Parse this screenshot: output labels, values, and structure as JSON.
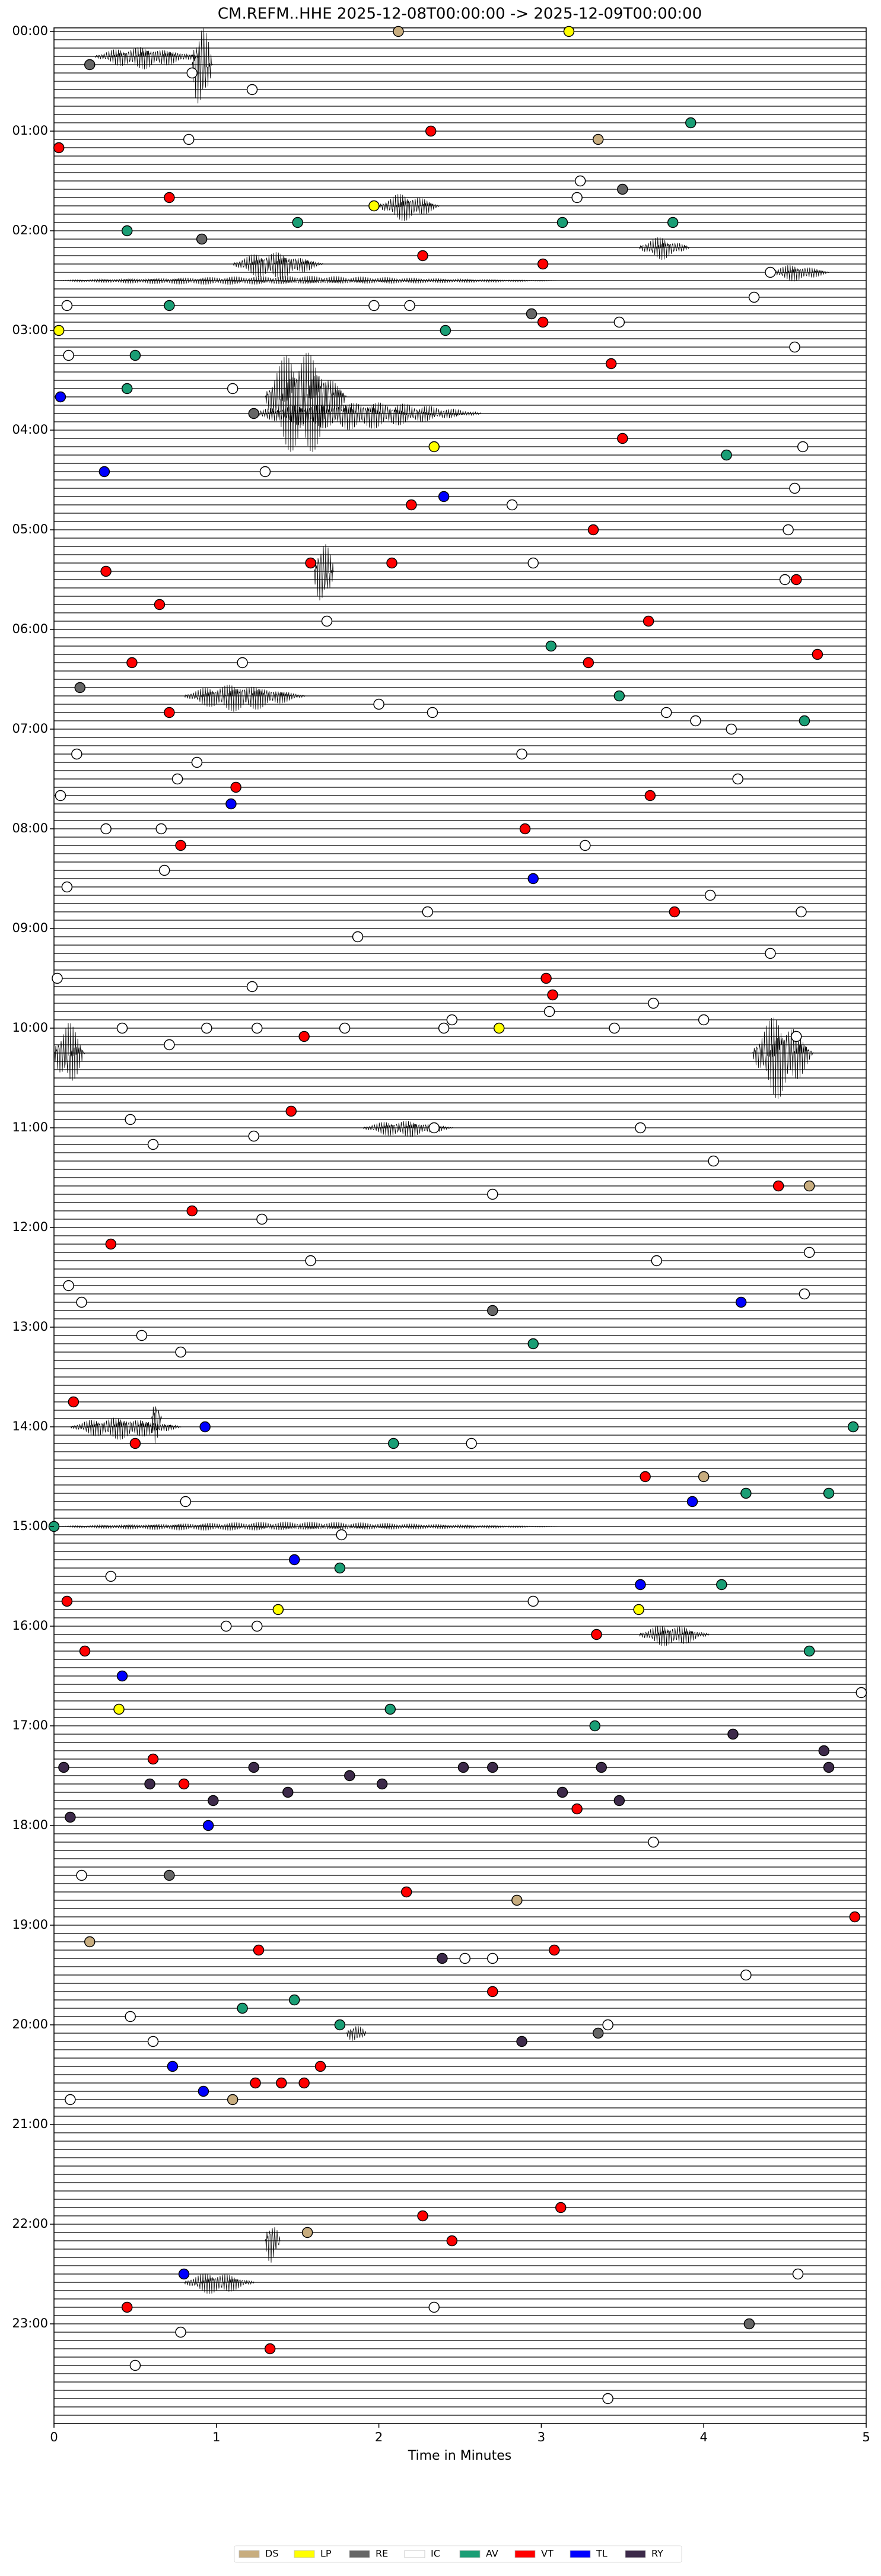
{
  "chart_data": {
    "type": "helicorder",
    "title": "CM.REFM..HHE  2025-12-08T00:00:00 -> 2025-12-09T00:00:00",
    "xlabel": "Time in Minutes",
    "xlim": [
      0,
      5
    ],
    "xticks": [
      0,
      1,
      2,
      3,
      4,
      5
    ],
    "ylim": [
      0,
      1435
    ],
    "row_interval": 5,
    "yticks": [
      {
        "value": 0,
        "label": "00:00"
      },
      {
        "value": 60,
        "label": "01:00"
      },
      {
        "value": 120,
        "label": "02:00"
      },
      {
        "value": 180,
        "label": "03:00"
      },
      {
        "value": 240,
        "label": "04:00"
      },
      {
        "value": 300,
        "label": "05:00"
      },
      {
        "value": 360,
        "label": "06:00"
      },
      {
        "value": 420,
        "label": "07:00"
      },
      {
        "value": 480,
        "label": "08:00"
      },
      {
        "value": 540,
        "label": "09:00"
      },
      {
        "value": 600,
        "label": "10:00"
      },
      {
        "value": 660,
        "label": "11:00"
      },
      {
        "value": 720,
        "label": "12:00"
      },
      {
        "value": 780,
        "label": "13:00"
      },
      {
        "value": 840,
        "label": "14:00"
      },
      {
        "value": 900,
        "label": "15:00"
      },
      {
        "value": 960,
        "label": "16:00"
      },
      {
        "value": 1020,
        "label": "17:00"
      },
      {
        "value": 1080,
        "label": "18:00"
      },
      {
        "value": 1140,
        "label": "19:00"
      },
      {
        "value": 1200,
        "label": "20:00"
      },
      {
        "value": 1260,
        "label": "21:00"
      },
      {
        "value": 1320,
        "label": "22:00"
      },
      {
        "value": 1380,
        "label": "23:00"
      }
    ],
    "legend": "lower center",
    "trace_color": "#000000",
    "bursts": [
      {
        "t": 15,
        "x0": 0.25,
        "x1": 1.3,
        "amp": 8
      },
      {
        "t": 20,
        "x0": 0.85,
        "x1": 1.05,
        "amp": 40
      },
      {
        "t": 105,
        "x0": 2.0,
        "x1": 2.6,
        "amp": 10
      },
      {
        "t": 130,
        "x0": 3.6,
        "x1": 4.1,
        "amp": 8
      },
      {
        "t": 140,
        "x0": 1.1,
        "x1": 2.0,
        "amp": 10
      },
      {
        "t": 150,
        "x0": 0,
        "x1": 5,
        "amp": 3
      },
      {
        "t": 145,
        "x0": 4.4,
        "x1": 5,
        "amp": 6
      },
      {
        "t": 220,
        "x0": 1.3,
        "x1": 2.1,
        "amp": 40
      },
      {
        "t": 230,
        "x0": 1.2,
        "x1": 3.5,
        "amp": 10
      },
      {
        "t": 325,
        "x0": 1.6,
        "x1": 1.8,
        "amp": 30
      },
      {
        "t": 400,
        "x0": 0.8,
        "x1": 2.0,
        "amp": 10
      },
      {
        "t": 615,
        "x0": 4.3,
        "x1": 4.9,
        "amp": 30
      },
      {
        "t": 615,
        "x0": 0,
        "x1": 0.3,
        "amp": 25
      },
      {
        "t": 660,
        "x0": 1.9,
        "x1": 2.8,
        "amp": 6
      },
      {
        "t": 840,
        "x0": 0.1,
        "x1": 1.2,
        "amp": 8
      },
      {
        "t": 835,
        "x0": 0.6,
        "x1": 0.7,
        "amp": 20
      },
      {
        "t": 900,
        "x0": 0,
        "x1": 5,
        "amp": 3
      },
      {
        "t": 965,
        "x0": 3.6,
        "x1": 4.3,
        "amp": 8
      },
      {
        "t": 1205,
        "x0": 1.8,
        "x1": 2.0,
        "amp": 8
      },
      {
        "t": 1330,
        "x0": 1.3,
        "x1": 1.45,
        "amp": 20
      },
      {
        "t": 1355,
        "x0": 0.8,
        "x1": 1.5,
        "amp": 8
      }
    ],
    "series": [
      {
        "name": "DS",
        "color": "#c8ad7f",
        "x": [
          2.12,
          3.35,
          4.65,
          4.0,
          2.85,
          0.22,
          1.56,
          1.1
        ],
        "y": [
          0,
          65,
          695,
          870,
          1125,
          1150,
          1325,
          1245
        ]
      },
      {
        "name": "LP",
        "color": "#ffff00",
        "x": [
          3.17,
          1.97,
          0.03,
          2.34,
          2.74,
          0.4,
          1.38,
          3.6
        ],
        "y": [
          0,
          105,
          180,
          250,
          600,
          1010,
          950,
          950
        ]
      },
      {
        "name": "RE",
        "color": "#666666",
        "x": [
          0.22,
          3.5,
          0.91,
          2.94,
          1.23,
          0.16,
          4.28,
          3.35,
          0.71,
          2.7
        ],
        "y": [
          20,
          95,
          125,
          170,
          230,
          395,
          1380,
          1205,
          1110,
          770
        ]
      },
      {
        "name": "IC",
        "color": "#ffffff",
        "x": [
          0.85,
          1.22,
          0.83,
          3.24,
          3.22,
          4.31,
          0.08,
          4.41,
          2.19,
          1.97,
          0.09,
          3.48,
          4.56,
          1.1,
          4.61,
          1.3,
          4.56,
          4.52,
          2.82,
          4.5,
          2.95,
          1.68,
          1.16,
          3.77,
          2.33,
          2.0,
          4.17,
          3.95,
          2.88,
          0.14,
          0.88,
          0.76,
          0.04,
          4.21,
          0.32,
          0.66,
          3.27,
          0.68,
          0.08,
          2.3,
          4.04,
          4.6,
          0.02,
          1.22,
          2.45,
          1.87,
          3.69,
          4.41,
          0.47,
          1.23,
          2.34,
          3.61,
          4.06,
          0.61,
          2.7,
          1.28,
          1.58,
          3.71,
          4.65,
          0.09,
          0.17,
          4.62,
          0.54,
          0.78,
          2.57,
          0.81,
          0.35,
          1.06,
          1.25,
          1.77,
          2.95,
          4.97,
          3.69,
          0.17,
          2.53,
          2.7,
          3.41,
          4.26,
          0.47,
          0.61,
          4.58,
          2.34,
          0.78,
          0.5,
          3.41,
          0.1,
          0.42,
          0.71,
          0.94,
          1.25,
          1.79,
          2.4,
          3.05,
          3.45,
          4.0,
          4.57
        ],
        "y": [
          25,
          35,
          65,
          90,
          100,
          160,
          165,
          145,
          165,
          165,
          195,
          175,
          190,
          215,
          250,
          265,
          275,
          300,
          285,
          330,
          320,
          355,
          380,
          410,
          410,
          405,
          420,
          415,
          435,
          435,
          440,
          450,
          460,
          450,
          480,
          480,
          490,
          505,
          515,
          530,
          520,
          530,
          570,
          575,
          595,
          545,
          585,
          555,
          655,
          665,
          660,
          660,
          680,
          670,
          700,
          715,
          740,
          740,
          735,
          755,
          765,
          760,
          785,
          795,
          850,
          885,
          930,
          960,
          960,
          905,
          945,
          1000,
          1090,
          1110,
          1160,
          1160,
          1200,
          1170,
          1195,
          1210,
          1350,
          1370,
          1385,
          1405,
          1425,
          1245,
          600,
          610,
          600,
          600,
          600,
          600,
          590,
          600,
          595,
          605
        ]
      },
      {
        "name": "AV",
        "color": "#1a9e75",
        "x": [
          3.92,
          1.5,
          0.45,
          0.45,
          0.71,
          2.41,
          3.13,
          3.81,
          0.5,
          4.14,
          3.06,
          3.48,
          4.62,
          2.95,
          2.09,
          4.92,
          4.26,
          4.77,
          0,
          1.76,
          4.11,
          4.65,
          2.07,
          3.33,
          1.16,
          1.48,
          1.76
        ],
        "y": [
          55,
          115,
          120,
          215,
          165,
          180,
          115,
          115,
          195,
          255,
          370,
          400,
          415,
          790,
          850,
          840,
          880,
          880,
          900,
          925,
          935,
          975,
          1010,
          1020,
          1190,
          1185,
          1200
        ]
      },
      {
        "name": "VT",
        "color": "#ff0000",
        "x": [
          2.32,
          0.03,
          0.71,
          2.27,
          3.01,
          3.01,
          3.43,
          3.5,
          2.2,
          3.32,
          2.08,
          1.58,
          0.32,
          4.57,
          0.65,
          3.66,
          0.48,
          4.7,
          3.29,
          0.71,
          1.12,
          3.67,
          0.78,
          2.9,
          3.03,
          3.82,
          1.54,
          3.07,
          1.46,
          4.46,
          0.85,
          0.35,
          0.12,
          0.5,
          3.64,
          0.08,
          3.34,
          0.19,
          2.7,
          1.24,
          1.4,
          1.54,
          1.64,
          1.26,
          3.08,
          2.17,
          4.93,
          3.22,
          2.27,
          2.45,
          3.12,
          0.45,
          1.33,
          0.8,
          0.61
        ],
        "y": [
          60,
          70,
          100,
          135,
          140,
          175,
          200,
          245,
          285,
          300,
          320,
          320,
          325,
          330,
          345,
          355,
          380,
          375,
          380,
          410,
          455,
          460,
          490,
          480,
          570,
          530,
          605,
          580,
          650,
          695,
          710,
          730,
          825,
          850,
          870,
          945,
          965,
          975,
          1180,
          1235,
          1235,
          1235,
          1225,
          1155,
          1155,
          1120,
          1135,
          1070,
          1315,
          1330,
          1310,
          1370,
          1395,
          1055,
          1040
        ]
      },
      {
        "name": "TL",
        "color": "#0000ff",
        "x": [
          0.04,
          0.31,
          2.4,
          2.95,
          1.09,
          0.93,
          4.23,
          3.61,
          3.93,
          1.48,
          0.42,
          0.95,
          0.73,
          0.92,
          0.8
        ],
        "y": [
          220,
          265,
          280,
          510,
          465,
          840,
          765,
          935,
          885,
          920,
          990,
          1080,
          1225,
          1240,
          1350
        ]
      },
      {
        "name": "RY",
        "color": "#3d2a4a",
        "x": [
          0.06,
          0.59,
          1.23,
          2.02,
          2.52,
          2.7,
          3.13,
          3.37,
          3.48,
          4.18,
          4.74,
          4.77,
          0.98,
          1.44,
          1.82,
          2.39,
          2.88,
          0.1
        ],
        "y": [
          1045,
          1055,
          1045,
          1055,
          1045,
          1045,
          1060,
          1045,
          1065,
          1025,
          1035,
          1045,
          1065,
          1060,
          1050,
          1160,
          1210,
          1075
        ]
      }
    ]
  }
}
